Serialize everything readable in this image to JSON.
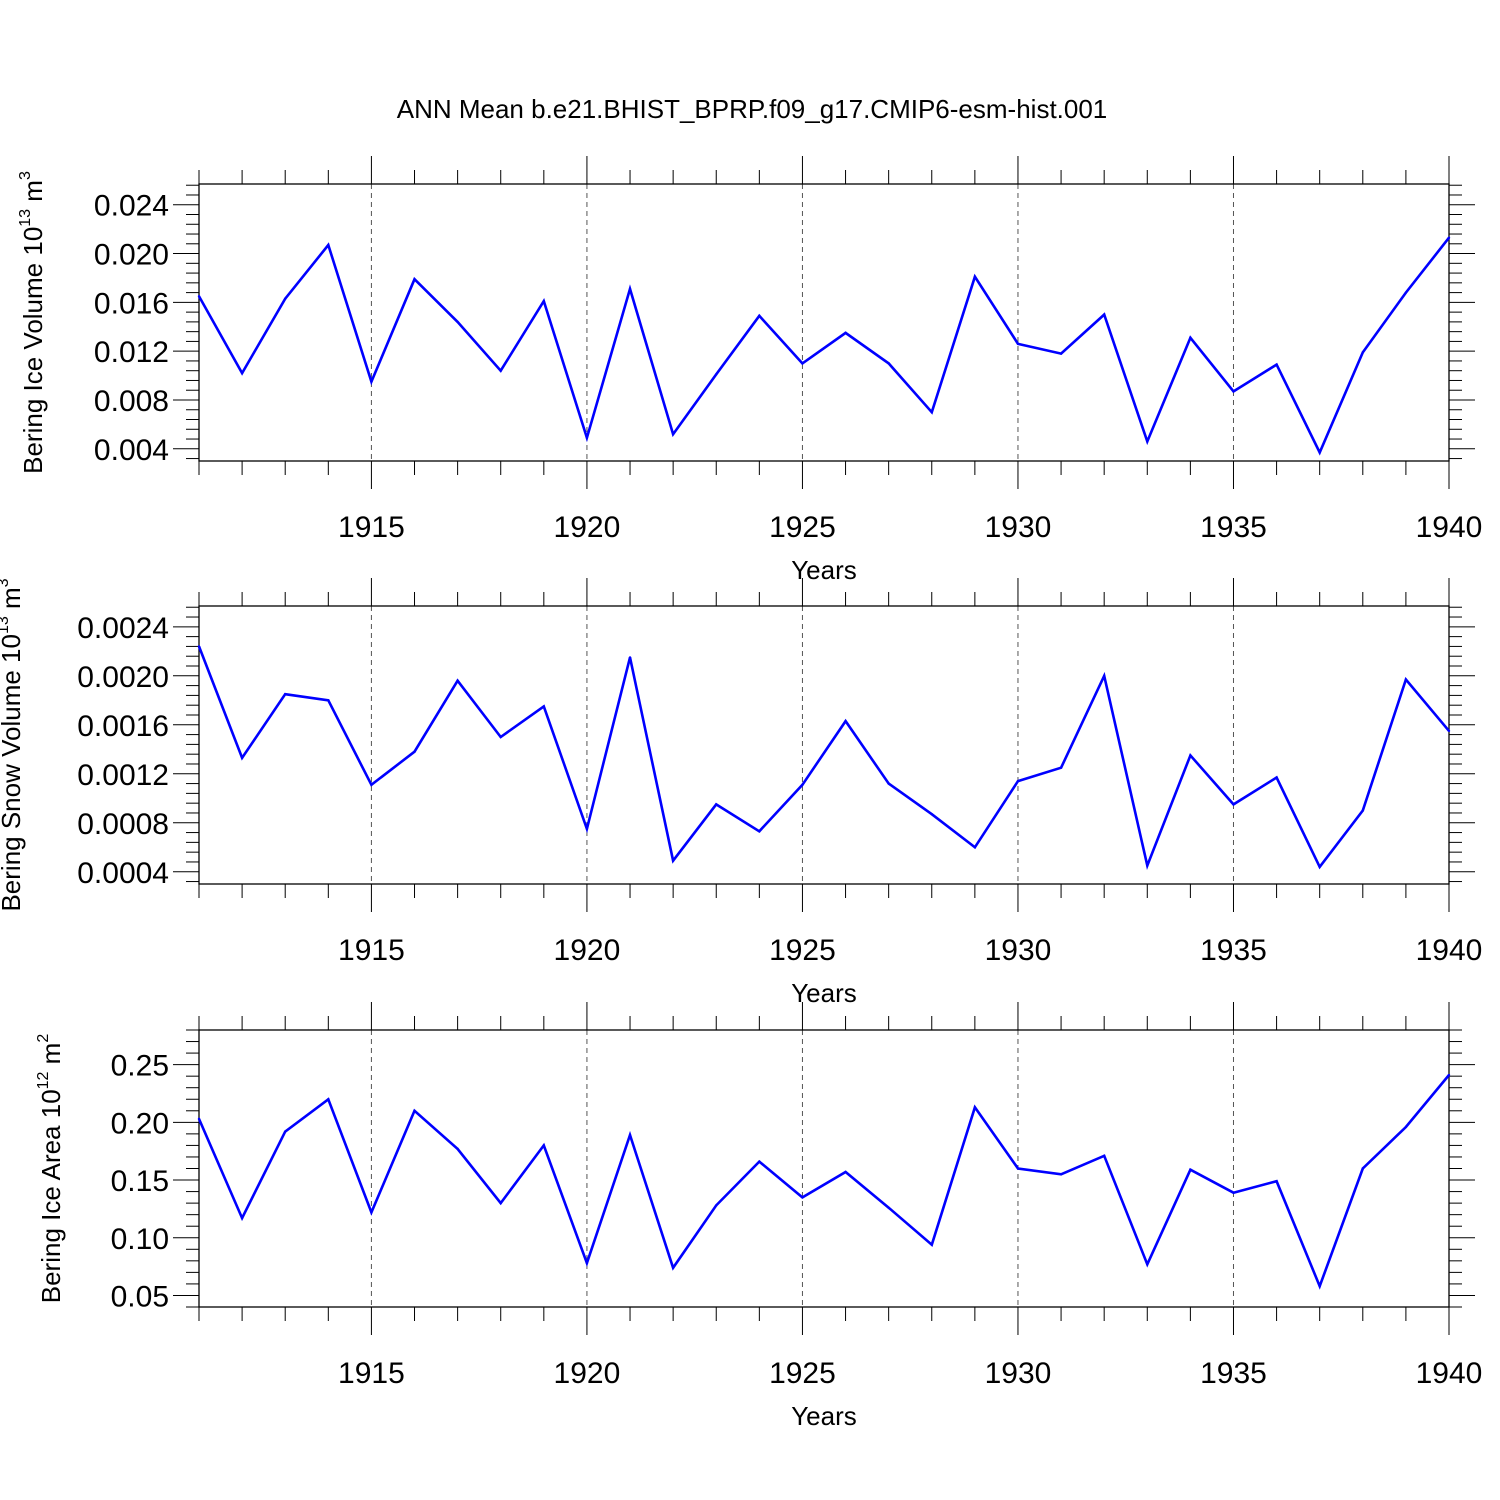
{
  "title": "ANN Mean b.e21.BHIST_BPRP.f09_g17.CMIP6-esm-hist.001",
  "line_color": "#0000ff",
  "chart_data": [
    {
      "type": "line",
      "ylabel": "Bering Ice Volume 10",
      "ylabel_exp": "13",
      "ylabel_unit": " m",
      "ylabel_unit_exp": "3",
      "xlabel": "Years",
      "xlim": [
        1911,
        1940
      ],
      "ylim": [
        0.003,
        0.0257
      ],
      "xticks": [
        1915,
        1920,
        1925,
        1930,
        1935,
        1940
      ],
      "xtick_labels": [
        "1915",
        "1920",
        "1925",
        "1930",
        "1935",
        "1940"
      ],
      "yticks": [
        0.004,
        0.008,
        0.012,
        0.016,
        0.02,
        0.024
      ],
      "ytick_labels": [
        "0.004",
        "0.008",
        "0.012",
        "0.016",
        "0.020",
        "0.024"
      ],
      "x": [
        1911,
        1912,
        1913,
        1914,
        1915,
        1916,
        1917,
        1918,
        1919,
        1920,
        1921,
        1922,
        1923,
        1924,
        1925,
        1926,
        1927,
        1928,
        1929,
        1930,
        1931,
        1932,
        1933,
        1934,
        1935,
        1936,
        1937,
        1938,
        1939,
        1940
      ],
      "y": [
        0.0165,
        0.0102,
        0.0163,
        0.0207,
        0.0095,
        0.0179,
        0.0144,
        0.0104,
        0.0161,
        0.0049,
        0.0171,
        0.0052,
        0.0101,
        0.0149,
        0.011,
        0.0135,
        0.011,
        0.007,
        0.0181,
        0.0126,
        0.0118,
        0.015,
        0.0046,
        0.0131,
        0.0087,
        0.0109,
        0.0037,
        0.0119,
        0.0168,
        0.0213
      ]
    },
    {
      "type": "line",
      "ylabel": "Bering Snow Volume 10",
      "ylabel_exp": "13",
      "ylabel_unit": " m",
      "ylabel_unit_exp": "3",
      "xlabel": "Years",
      "xlim": [
        1911,
        1940
      ],
      "ylim": [
        0.0003,
        0.00257
      ],
      "xticks": [
        1915,
        1920,
        1925,
        1930,
        1935,
        1940
      ],
      "xtick_labels": [
        "1915",
        "1920",
        "1925",
        "1930",
        "1935",
        "1940"
      ],
      "yticks": [
        0.0004,
        0.0008,
        0.0012,
        0.0016,
        0.002,
        0.0024
      ],
      "ytick_labels": [
        "0.0004",
        "0.0008",
        "0.0012",
        "0.0016",
        "0.0020",
        "0.0024"
      ],
      "x": [
        1911,
        1912,
        1913,
        1914,
        1915,
        1916,
        1917,
        1918,
        1919,
        1920,
        1921,
        1922,
        1923,
        1924,
        1925,
        1926,
        1927,
        1928,
        1929,
        1930,
        1931,
        1932,
        1933,
        1934,
        1935,
        1936,
        1937,
        1938,
        1939,
        1940
      ],
      "y": [
        0.00224,
        0.00133,
        0.00185,
        0.0018,
        0.00111,
        0.00138,
        0.00196,
        0.0015,
        0.00175,
        0.00075,
        0.00215,
        0.00049,
        0.00095,
        0.00073,
        0.00111,
        0.00163,
        0.00112,
        0.00087,
        0.0006,
        0.00114,
        0.00125,
        0.002,
        0.00045,
        0.00135,
        0.00095,
        0.00117,
        0.00044,
        0.0009,
        0.00197,
        0.00155
      ]
    },
    {
      "type": "line",
      "ylabel": "Bering Ice Area 10",
      "ylabel_exp": "12",
      "ylabel_unit": " m",
      "ylabel_unit_exp": "2",
      "xlabel": "Years",
      "xlim": [
        1911,
        1940
      ],
      "ylim": [
        0.04,
        0.28
      ],
      "xticks": [
        1915,
        1920,
        1925,
        1930,
        1935,
        1940
      ],
      "xtick_labels": [
        "1915",
        "1920",
        "1925",
        "1930",
        "1935",
        "1940"
      ],
      "yticks": [
        0.05,
        0.1,
        0.15,
        0.2,
        0.25
      ],
      "ytick_labels": [
        "0.05",
        "0.10",
        "0.15",
        "0.20",
        "0.25"
      ],
      "x": [
        1911,
        1912,
        1913,
        1914,
        1915,
        1916,
        1917,
        1918,
        1919,
        1920,
        1921,
        1922,
        1923,
        1924,
        1925,
        1926,
        1927,
        1928,
        1929,
        1930,
        1931,
        1932,
        1933,
        1934,
        1935,
        1936,
        1937,
        1938,
        1939,
        1940
      ],
      "y": [
        0.203,
        0.117,
        0.192,
        0.22,
        0.122,
        0.21,
        0.177,
        0.13,
        0.18,
        0.078,
        0.189,
        0.074,
        0.128,
        0.166,
        0.135,
        0.157,
        0.126,
        0.094,
        0.213,
        0.16,
        0.155,
        0.171,
        0.077,
        0.159,
        0.139,
        0.149,
        0.058,
        0.16,
        0.196,
        0.241
      ]
    }
  ]
}
